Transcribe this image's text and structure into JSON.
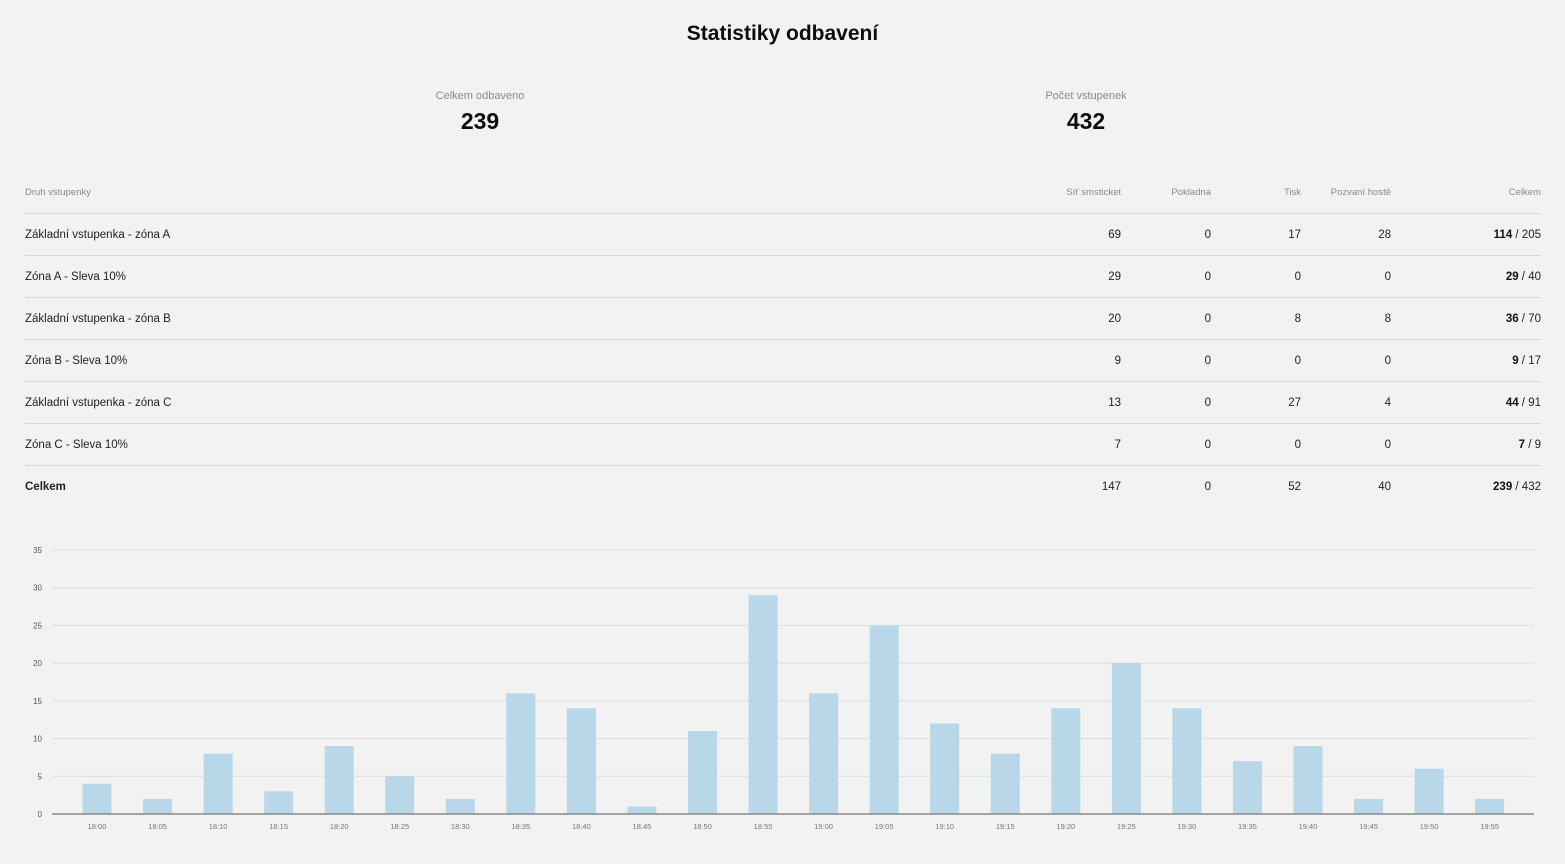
{
  "page": {
    "title": "Statistiky odbavení"
  },
  "stats": [
    {
      "label": "Celkem odbaveno",
      "value": "239"
    },
    {
      "label": "Počet vstupenek",
      "value": "432"
    }
  ],
  "table": {
    "headers": [
      "Druh vstupenky",
      "Síť smsticket",
      "Pokladna",
      "Tisk",
      "Pozvaní hosté",
      "Celkem"
    ],
    "rows": [
      {
        "name": "Základní vstupenka - zóna A",
        "cols": [
          "69",
          "0",
          "17",
          "28"
        ],
        "done": "114",
        "total": " / 205"
      },
      {
        "name": "Zóna A - Sleva 10%",
        "cols": [
          "29",
          "0",
          "0",
          "0"
        ],
        "done": "29",
        "total": " / 40"
      },
      {
        "name": "Základní vstupenka - zóna B",
        "cols": [
          "20",
          "0",
          "8",
          "8"
        ],
        "done": "36",
        "total": " / 70"
      },
      {
        "name": "Zóna B - Sleva 10%",
        "cols": [
          "9",
          "0",
          "0",
          "0"
        ],
        "done": "9",
        "total": " / 17"
      },
      {
        "name": "Základní vstupenka - zóna C",
        "cols": [
          "13",
          "0",
          "27",
          "4"
        ],
        "done": "44",
        "total": " / 91"
      },
      {
        "name": "Zóna C - Sleva 10%",
        "cols": [
          "7",
          "0",
          "0",
          "0"
        ],
        "done": "7",
        "total": " / 9"
      }
    ],
    "footer": {
      "name": "Celkem",
      "cols": [
        "147",
        "0",
        "52",
        "40"
      ],
      "done": "239",
      "total": " / 432"
    }
  },
  "chart_data": {
    "type": "bar",
    "categories": [
      "18:00",
      "18:05",
      "18:10",
      "18:15",
      "18:20",
      "18:25",
      "18:30",
      "18:35",
      "18:40",
      "18:45",
      "18:50",
      "18:55",
      "19:00",
      "19:05",
      "19:10",
      "19:15",
      "19:20",
      "19:25",
      "19:30",
      "19:35",
      "19:40",
      "19:45",
      "19:50",
      "19:55"
    ],
    "values": [
      4,
      2,
      8,
      3,
      9,
      5,
      2,
      16,
      14,
      1,
      11,
      29,
      16,
      25,
      12,
      8,
      14,
      20,
      14,
      7,
      9,
      2,
      6,
      2
    ],
    "ylim": [
      0,
      35
    ],
    "yticks": [
      0,
      5,
      10,
      15,
      20,
      25,
      30,
      35
    ],
    "grid": true,
    "bar_color": "#b8d7e8"
  }
}
